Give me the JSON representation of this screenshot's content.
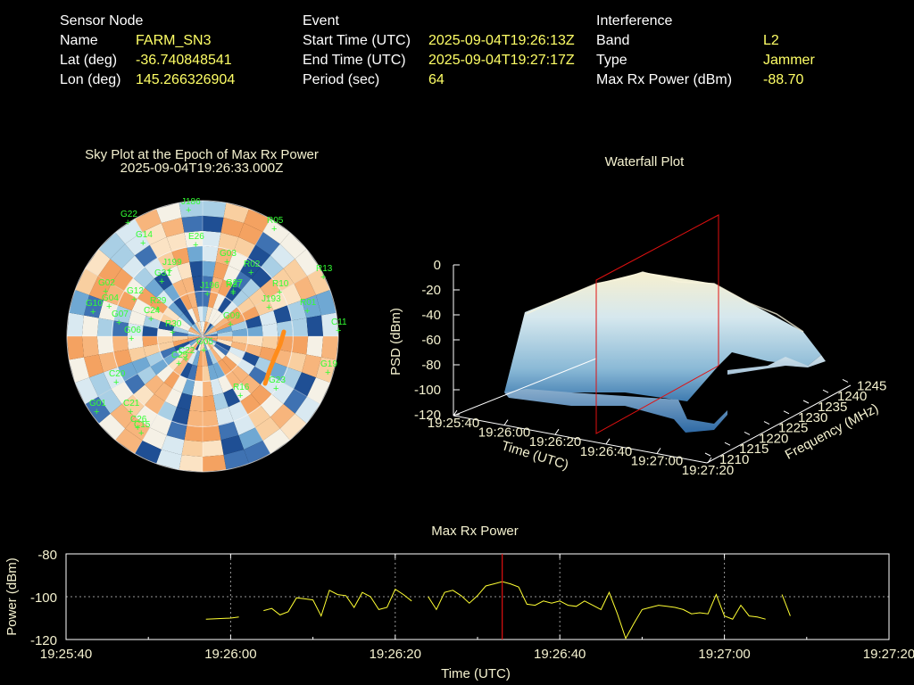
{
  "header": {
    "sensor": {
      "title": "Sensor Node",
      "rows": [
        {
          "label": "Name",
          "value": "FARM_SN3"
        },
        {
          "label": "Lat (deg)",
          "value": "-36.740848541"
        },
        {
          "label": "Lon (deg)",
          "value": "145.266326904"
        }
      ]
    },
    "event": {
      "title": "Event",
      "rows": [
        {
          "label": "Start Time (UTC)",
          "value": "2025-09-04T19:26:13Z"
        },
        {
          "label": "End Time (UTC)",
          "value": "2025-09-04T19:27:17Z"
        },
        {
          "label": "Period (sec)",
          "value": "64"
        }
      ]
    },
    "interference": {
      "title": "Interference",
      "rows": [
        {
          "label": "Band",
          "value": "L2"
        },
        {
          "label": "Type",
          "value": "Jammer"
        },
        {
          "label": "Max Rx Power (dBm)",
          "value": "-88.70"
        }
      ]
    }
  },
  "skyplot": {
    "title": "Sky Plot at the Epoch of Max Rx Power",
    "subtitle": "2025-09-04T19:26:33.000Z",
    "satellites": [
      "G22",
      "J186",
      "R05",
      "G14",
      "E26",
      "J199",
      "G31",
      "R13",
      "G02",
      "G04",
      "G10",
      "G07",
      "G12",
      "G03",
      "G09",
      "G27",
      "J196",
      "R27",
      "R01",
      "J193",
      "C20",
      "C22",
      "G01",
      "G06",
      "R16",
      "C15",
      "G19",
      "R10",
      "C24",
      "G23",
      "C26",
      "C25",
      "R29",
      "R30",
      "C21",
      "C11",
      "G05",
      "R02"
    ]
  },
  "waterfall": {
    "title": "Waterfall Plot",
    "zlabel": "PSD (dBm)",
    "xlabel": "Time (UTC)",
    "ylabel": "Frequency (MHz)",
    "ztick_labels": [
      "0",
      "-20",
      "-40",
      "-60",
      "-80",
      "-100",
      "-120"
    ],
    "time_tick_labels": [
      "19:25:40",
      "19:26:00",
      "19:26:20",
      "19:26:40",
      "19:27:00",
      "19:27:20"
    ],
    "freq_tick_labels": [
      "1210",
      "1215",
      "1220",
      "1225",
      "1230",
      "1235",
      "1240",
      "1245"
    ]
  },
  "chart_data": {
    "type": "line",
    "title": "Max Rx Power",
    "xlabel": "Time (UTC)",
    "ylabel": "Power (dBm)",
    "xlim_seconds_from_19_25_40": [
      0,
      100
    ],
    "x_tick_labels": [
      "19:25:40",
      "19:26:00",
      "19:26:20",
      "19:26:40",
      "19:27:00",
      "19:27:20"
    ],
    "y_tick_labels": [
      "-80",
      "-100",
      "-120"
    ],
    "ylim": [
      -120,
      -80
    ],
    "grid": true,
    "marker_time": "19:26:33",
    "line_color": "#ffff33",
    "marker_color": "#e01010",
    "segments": [
      [
        [
          17,
          -110.5
        ],
        [
          20,
          -110
        ],
        [
          21,
          -109.5
        ]
      ],
      [
        [
          24,
          -106.5
        ],
        [
          25,
          -105.5
        ],
        [
          26,
          -108.5
        ],
        [
          27,
          -107
        ],
        [
          28,
          -100.5
        ],
        [
          29,
          -101
        ],
        [
          30,
          -101.5
        ],
        [
          31,
          -109
        ],
        [
          32,
          -97
        ],
        [
          33,
          -99
        ],
        [
          34,
          -99.5
        ],
        [
          35,
          -105
        ],
        [
          36,
          -98
        ],
        [
          37,
          -100
        ],
        [
          38,
          -106
        ],
        [
          39,
          -105
        ],
        [
          40,
          -96.5
        ],
        [
          41,
          -99
        ],
        [
          42,
          -102
        ]
      ],
      [
        [
          44,
          -100
        ],
        [
          45,
          -106
        ],
        [
          46,
          -98
        ],
        [
          47,
          -97
        ],
        [
          48,
          -99.5
        ],
        [
          49,
          -103
        ],
        [
          50,
          -99.5
        ],
        [
          51,
          -95
        ],
        [
          52,
          -94
        ],
        [
          53,
          -93
        ],
        [
          54,
          -94
        ],
        [
          55,
          -95.5
        ],
        [
          56,
          -103.5
        ],
        [
          57,
          -104
        ],
        [
          58,
          -102
        ],
        [
          59,
          -103
        ],
        [
          60,
          -102
        ],
        [
          61,
          -104
        ],
        [
          62,
          -104.5
        ],
        [
          63,
          -102
        ],
        [
          64,
          -104
        ],
        [
          65,
          -106
        ],
        [
          66,
          -98
        ],
        [
          67,
          -108
        ],
        [
          68,
          -119.5
        ],
        [
          69,
          -112.5
        ],
        [
          70,
          -106
        ],
        [
          71,
          -105
        ],
        [
          72,
          -104
        ],
        [
          73,
          -104.5
        ],
        [
          74,
          -105
        ],
        [
          75,
          -106
        ],
        [
          76,
          -108
        ],
        [
          77,
          -107.5
        ],
        [
          78,
          -108
        ],
        [
          79,
          -99
        ],
        [
          80,
          -109
        ],
        [
          81,
          -110.5
        ],
        [
          82,
          -104
        ],
        [
          83,
          -109
        ],
        [
          84,
          -109.5
        ],
        [
          85,
          -110.5
        ]
      ],
      [
        [
          87,
          -99
        ],
        [
          88,
          -109
        ]
      ]
    ]
  }
}
